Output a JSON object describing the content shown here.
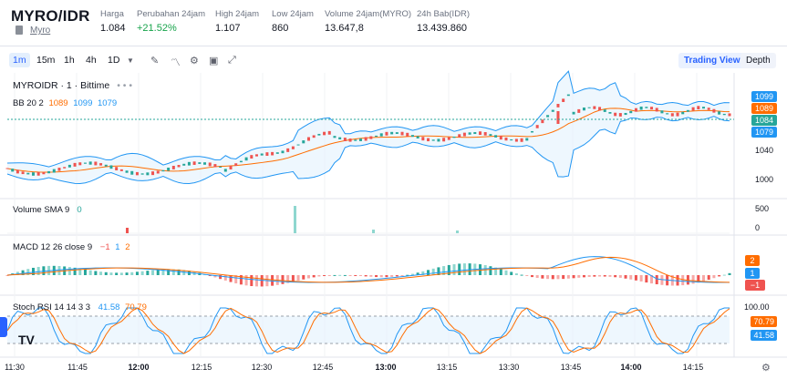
{
  "header": {
    "pair": "MYRO/IDR",
    "token_link": "Myro",
    "stats": [
      {
        "label": "Harga",
        "value": "1.084",
        "color": "#131722"
      },
      {
        "label": "Perubahan 24jam",
        "value": "+21.52%",
        "color": "#16a34a"
      },
      {
        "label": "High 24jam",
        "value": "1.107",
        "color": "#131722"
      },
      {
        "label": "Low 24jam",
        "value": "860",
        "color": "#131722"
      },
      {
        "label": "Volume 24jam(MYRO)",
        "value": "13.647,8",
        "color": "#131722"
      },
      {
        "label": "24h Bab(IDR)",
        "value": "13.439.860",
        "color": "#131722"
      }
    ]
  },
  "toolbar": {
    "timeframes": [
      "1m",
      "15m",
      "1h",
      "4h",
      "1D"
    ],
    "active_timeframe": "1m",
    "trading_view": "Trading View",
    "depth": "Depth"
  },
  "panes": {
    "main": {
      "title": "MYROIDR · 1 · Bittime",
      "bb_label": "BB 20 2",
      "bb_values": [
        "1089",
        "1099",
        "1079"
      ],
      "price_ticks": [
        "1040",
        "1000"
      ],
      "tags": [
        "1099",
        "1089",
        "1084",
        "1079"
      ]
    },
    "volume": {
      "label": "Volume SMA 9",
      "value": "0",
      "ticks": [
        "500",
        "0"
      ]
    },
    "macd": {
      "label": "MACD 12 26 close 9",
      "values": [
        "−1",
        "1",
        "2"
      ],
      "tags": [
        "2",
        "1",
        "−1"
      ]
    },
    "stoch": {
      "label": "Stoch RSI 14 14 3 3",
      "values": [
        "41.58",
        "70.79"
      ],
      "ticks": [
        "100.00"
      ],
      "tags": [
        "70.79",
        "41.58"
      ]
    }
  },
  "time_axis": [
    "11:30",
    "11:45",
    "12:00",
    "12:15",
    "12:30",
    "12:45",
    "13:00",
    "13:15",
    "13:30",
    "13:45",
    "14:00",
    "14:15"
  ],
  "colors": {
    "up": "#26a69a",
    "down": "#ef5350",
    "bb_band": "#2196f3",
    "bb_basis": "#ff6d00",
    "accent": "#2962ff"
  }
}
